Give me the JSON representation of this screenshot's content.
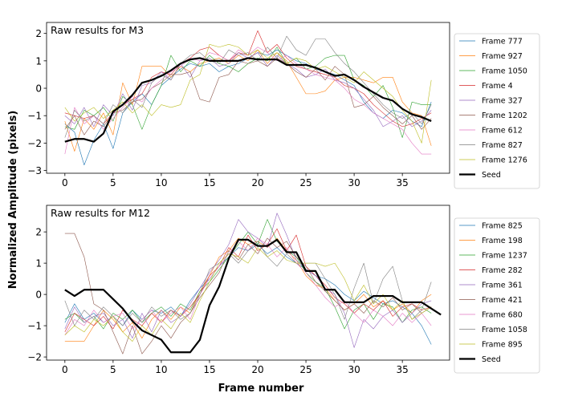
{
  "figure": {
    "ylabel": "Normalized Amplitude (pixels)",
    "xlabel": "Frame number"
  },
  "chart_data": [
    {
      "type": "line",
      "title": "Raw results for M3",
      "xlim": [
        -1.9,
        39.9
      ],
      "ylim": [
        -3.1,
        2.4
      ],
      "xticks": [
        0,
        5,
        10,
        15,
        20,
        25,
        30,
        35
      ],
      "yticks": [
        -3,
        -2,
        -1,
        0,
        1,
        2
      ],
      "legend_position": "right",
      "series": [
        {
          "name": "Frame 777",
          "color": "#1f77b4",
          "bold": false,
          "values": [
            -1.3,
            -1.6,
            -2.8,
            -1.9,
            -1.3,
            -2.2,
            -0.9,
            -0.5,
            -0.2,
            -0.6,
            0.1,
            0.4,
            0.7,
            0.9,
            0.8,
            0.9,
            0.6,
            0.8,
            0.9,
            1.1,
            1.3,
            1.2,
            1.4,
            1.2,
            1.0,
            0.9,
            0.7,
            0.6,
            0.5,
            0.3,
            0.1,
            -0.5,
            -0.9,
            -1.1,
            -0.8,
            -0.9,
            -1.2,
            -1.4,
            -0.5
          ]
        },
        {
          "name": "Frame 927",
          "color": "#ff7f0e",
          "bold": false,
          "values": [
            -1.2,
            -2.3,
            -1.1,
            -1.5,
            -0.9,
            -1.7,
            0.2,
            -0.6,
            0.8,
            0.8,
            0.8,
            0.4,
            0.8,
            0.6,
            0.9,
            1.0,
            1.1,
            0.9,
            1.2,
            1.0,
            1.4,
            0.9,
            1.3,
            1.0,
            0.4,
            -0.2,
            -0.2,
            -0.1,
            0.3,
            0.4,
            0.4,
            0.3,
            0.2,
            0.4,
            0.4,
            -0.5,
            -0.9,
            -1.0,
            -2.1
          ]
        },
        {
          "name": "Frame 1050",
          "color": "#2ca02c",
          "bold": false,
          "values": [
            -1.4,
            -1.5,
            -0.8,
            -1.0,
            -0.7,
            -1.2,
            -0.3,
            -0.6,
            -1.5,
            -0.6,
            0.1,
            1.2,
            0.6,
            1.0,
            0.8,
            1.2,
            0.9,
            0.8,
            0.6,
            0.9,
            1.1,
            1.0,
            1.5,
            0.9,
            1.1,
            0.7,
            0.8,
            1.1,
            1.2,
            1.2,
            0.3,
            0.1,
            -0.3,
            0.1,
            -0.7,
            -1.8,
            -0.5,
            -0.6,
            -0.6
          ]
        },
        {
          "name": "Frame 4",
          "color": "#d62728",
          "bold": false,
          "values": [
            -0.9,
            -1.0,
            -1.1,
            -1.0,
            -1.3,
            -0.9,
            -0.6,
            -0.4,
            -0.2,
            0.4,
            0.6,
            0.5,
            0.9,
            1.1,
            1.4,
            1.5,
            1.2,
            1.0,
            1.3,
            1.2,
            2.1,
            1.3,
            1.6,
            1.1,
            0.8,
            0.7,
            0.6,
            0.5,
            0.4,
            0.1,
            0.0,
            -0.2,
            -0.6,
            -0.9,
            -1.2,
            -1.4,
            -1.3,
            -1.1,
            -0.9
          ]
        },
        {
          "name": "Frame 327",
          "color": "#9467bd",
          "bold": false,
          "values": [
            -1.0,
            -1.3,
            -0.7,
            -1.4,
            -0.6,
            -1.0,
            -0.2,
            -0.8,
            0.1,
            0.2,
            0.6,
            0.3,
            0.9,
            0.4,
            1.0,
            1.1,
            0.8,
            0.9,
            1.3,
            1.1,
            1.3,
            0.8,
            1.2,
            0.9,
            0.7,
            0.4,
            0.5,
            0.7,
            0.3,
            0.2,
            0.0,
            -0.4,
            -0.8,
            -1.4,
            -1.2,
            -1.0,
            -1.4,
            -1.2,
            -0.8
          ]
        },
        {
          "name": "Frame 1202",
          "color": "#8c564b",
          "bold": false,
          "values": [
            -1.5,
            -1.0,
            -1.7,
            -1.2,
            -1.4,
            -0.9,
            -0.8,
            -0.5,
            -0.4,
            0.0,
            0.2,
            0.5,
            0.5,
            0.6,
            -0.4,
            -0.5,
            0.4,
            0.5,
            1.0,
            0.9,
            1.0,
            0.8,
            1.1,
            0.9,
            0.6,
            0.4,
            0.7,
            0.3,
            0.8,
            0.5,
            -0.7,
            -0.6,
            -0.3,
            -0.7,
            -1.0,
            -1.3,
            -1.0,
            -1.5,
            -1.1
          ]
        },
        {
          "name": "Frame 612",
          "color": "#e377c2",
          "bold": false,
          "values": [
            -2.4,
            -0.7,
            -1.3,
            -1.0,
            -1.5,
            -1.1,
            -0.7,
            -0.3,
            -0.5,
            0.0,
            0.3,
            0.6,
            0.8,
            1.1,
            1.0,
            1.3,
            1.2,
            1.0,
            1.4,
            1.2,
            1.5,
            1.3,
            1.0,
            1.2,
            0.9,
            0.7,
            0.5,
            0.4,
            0.3,
            0.0,
            -0.4,
            -0.6,
            -0.9,
            -1.1,
            -1.3,
            -1.5,
            -2.0,
            -2.4,
            -2.4
          ]
        },
        {
          "name": "Frame 827",
          "color": "#7f7f7f",
          "bold": false,
          "values": [
            -1.8,
            -0.8,
            -1.2,
            -1.0,
            -1.3,
            -0.6,
            -0.9,
            -0.4,
            -0.7,
            0.2,
            0.5,
            0.3,
            0.9,
            1.2,
            1.3,
            1.0,
            0.9,
            1.4,
            1.2,
            1.3,
            1.0,
            1.5,
            1.1,
            1.9,
            1.4,
            1.2,
            1.8,
            1.8,
            1.3,
            0.9,
            0.6,
            0.2,
            -0.2,
            -0.6,
            -0.9,
            -1.1,
            -0.9,
            -1.3,
            -0.6
          ]
        },
        {
          "name": "Frame 1276",
          "color": "#bcbd22",
          "bold": false,
          "values": [
            -0.7,
            -1.2,
            -0.9,
            -0.7,
            -1.1,
            -0.8,
            -0.5,
            -0.9,
            -0.6,
            -1.0,
            -0.6,
            -0.7,
            -0.6,
            0.3,
            0.5,
            1.6,
            1.5,
            1.6,
            1.5,
            1.2,
            1.4,
            1.1,
            1.3,
            0.9,
            1.1,
            1.0,
            0.7,
            0.8,
            0.6,
            0.4,
            0.2,
            0.6,
            0.3,
            0.0,
            -0.3,
            -0.8,
            -1.2,
            -2.0,
            0.3
          ]
        },
        {
          "name": "Seed",
          "color": "#000000",
          "bold": true,
          "values": [
            -1.95,
            -1.85,
            -1.85,
            -1.95,
            -1.65,
            -0.85,
            -0.6,
            -0.25,
            0.2,
            0.3,
            0.45,
            0.65,
            0.9,
            1.05,
            1.1,
            1.0,
            1.0,
            1.0,
            1.0,
            1.1,
            1.05,
            1.05,
            1.05,
            0.85,
            0.85,
            0.85,
            0.75,
            0.6,
            0.45,
            0.5,
            0.3,
            0.05,
            -0.15,
            -0.35,
            -0.45,
            -0.75,
            -0.95,
            -1.05,
            -1.2
          ]
        }
      ]
    },
    {
      "type": "line",
      "title": "Raw results for M12",
      "xlim": [
        -1.9,
        39.9
      ],
      "ylim": [
        -2.1,
        2.85
      ],
      "xticks": [
        0,
        5,
        10,
        15,
        20,
        25,
        30,
        35
      ],
      "yticks": [
        -2,
        -1,
        0,
        1,
        2
      ],
      "legend_position": "right",
      "series": [
        {
          "name": "Frame 825",
          "color": "#1f77b4",
          "bold": false,
          "values": [
            -0.9,
            -0.3,
            -0.8,
            -0.6,
            -0.9,
            -0.7,
            -1.0,
            -0.5,
            -0.8,
            -0.5,
            -0.6,
            -0.4,
            -0.7,
            -0.2,
            0.2,
            0.5,
            0.9,
            1.2,
            1.5,
            1.4,
            1.6,
            1.3,
            1.5,
            1.2,
            1.0,
            0.8,
            0.6,
            0.5,
            0.3,
            0.0,
            -0.2,
            0.1,
            -0.1,
            -0.3,
            -0.2,
            -0.4,
            -0.6,
            -1.0,
            -1.6
          ]
        },
        {
          "name": "Frame 198",
          "color": "#ff7f0e",
          "bold": false,
          "values": [
            -1.5,
            -1.5,
            -1.5,
            -1.0,
            -0.5,
            -0.8,
            -1.2,
            -0.9,
            -1.4,
            -0.8,
            -0.5,
            -0.8,
            -0.4,
            -0.6,
            0.1,
            0.6,
            1.2,
            1.4,
            1.8,
            1.6,
            1.7,
            1.5,
            1.8,
            1.4,
            1.1,
            0.6,
            0.3,
            0.2,
            -0.2,
            -0.5,
            -0.3,
            0.0,
            -0.4,
            -0.2,
            -0.5,
            -0.3,
            -0.6,
            -0.2,
            0.0
          ]
        },
        {
          "name": "Frame 1237",
          "color": "#2ca02c",
          "bold": false,
          "values": [
            -0.8,
            -0.6,
            -0.9,
            -0.7,
            -1.1,
            -0.6,
            -0.8,
            -0.5,
            -0.9,
            -0.6,
            -0.4,
            -0.7,
            -0.3,
            -0.5,
            0.1,
            0.4,
            0.8,
            1.2,
            1.6,
            2.0,
            1.6,
            2.4,
            1.7,
            1.4,
            1.2,
            0.7,
            0.4,
            0.2,
            -0.4,
            -1.1,
            -0.5,
            -0.3,
            -0.8,
            -0.3,
            -0.4,
            -0.9,
            -0.5,
            -0.4,
            -0.6
          ]
        },
        {
          "name": "Frame 282",
          "color": "#d62728",
          "bold": false,
          "values": [
            -1.2,
            -0.6,
            -0.8,
            -1.0,
            -0.7,
            -1.1,
            -0.5,
            -0.8,
            -1.0,
            -0.6,
            -0.9,
            -0.5,
            -0.7,
            -0.4,
            0.0,
            0.6,
            0.9,
            1.5,
            1.2,
            1.9,
            1.4,
            1.6,
            2.1,
            1.4,
            1.9,
            0.9,
            0.6,
            0.3,
            -0.1,
            -0.3,
            -0.6,
            -0.3,
            -0.5,
            -0.2,
            -0.7,
            -0.4,
            -0.3,
            -0.5,
            -0.4
          ]
        },
        {
          "name": "Frame 361",
          "color": "#9467bd",
          "bold": false,
          "values": [
            -1.1,
            -0.4,
            -0.9,
            -0.7,
            -0.6,
            -1.0,
            -0.8,
            -1.4,
            -0.6,
            -1.2,
            -0.5,
            -0.9,
            -0.7,
            -0.3,
            0.2,
            0.7,
            1.1,
            1.6,
            2.4,
            2.0,
            1.8,
            1.5,
            2.6,
            1.9,
            1.1,
            0.8,
            0.6,
            0.2,
            0.0,
            -0.6,
            -1.7,
            -0.8,
            -1.1,
            -0.7,
            -0.5,
            -0.9,
            -0.6,
            -0.3,
            -0.2
          ]
        },
        {
          "name": "Frame 421",
          "color": "#8c564b",
          "bold": false,
          "values": [
            1.95,
            1.95,
            1.2,
            -0.3,
            -0.5,
            -1.2,
            -1.9,
            -1.0,
            -1.9,
            -1.5,
            -1.0,
            -1.4,
            -0.9,
            -0.6,
            -0.1,
            0.3,
            0.7,
            1.4,
            1.1,
            1.6,
            1.3,
            1.8,
            1.5,
            1.7,
            1.2,
            0.9,
            0.4,
            0.1,
            -0.2,
            -0.5,
            -0.3,
            -0.6,
            -0.2,
            -0.4,
            -0.1,
            -0.5,
            -0.3,
            -0.6,
            -0.4
          ]
        },
        {
          "name": "Frame 680",
          "color": "#e377c2",
          "bold": false,
          "values": [
            -1.3,
            -0.8,
            -1.0,
            -0.5,
            -0.9,
            -0.7,
            -0.6,
            -1.1,
            -0.8,
            -0.5,
            -0.9,
            -0.6,
            -0.4,
            -0.8,
            0.0,
            0.5,
            0.9,
            1.3,
            1.7,
            1.4,
            1.8,
            1.6,
            1.2,
            1.5,
            1.0,
            0.7,
            0.3,
            -0.1,
            -0.4,
            -0.2,
            -0.6,
            -0.9,
            -0.5,
            -0.7,
            -1.0,
            -0.6,
            -0.9,
            -0.6,
            -1.0
          ]
        },
        {
          "name": "Frame 1058",
          "color": "#7f7f7f",
          "bold": false,
          "values": [
            -0.2,
            -1.0,
            -0.5,
            -0.8,
            -0.4,
            -0.7,
            -1.0,
            -0.6,
            -0.9,
            -0.4,
            -0.7,
            -0.5,
            -0.8,
            -0.6,
            0.0,
            0.8,
            1.0,
            1.3,
            1.0,
            1.4,
            1.7,
            1.2,
            0.9,
            1.3,
            1.0,
            1.0,
            1.0,
            0.5,
            0.0,
            -0.8,
            0.2,
            1.0,
            -0.3,
            0.5,
            0.9,
            -0.2,
            -0.8,
            -0.5,
            0.4
          ]
        },
        {
          "name": "Frame 895",
          "color": "#bcbd22",
          "bold": false,
          "values": [
            -1.3,
            -1.0,
            -1.2,
            -0.8,
            -1.0,
            -0.7,
            -1.2,
            -1.5,
            -1.0,
            -1.3,
            -0.8,
            -1.1,
            -0.6,
            -0.9,
            -0.2,
            0.4,
            1.0,
            1.3,
            1.2,
            1.0,
            1.5,
            1.2,
            1.4,
            1.1,
            1.0,
            1.0,
            1.0,
            0.9,
            1.0,
            0.5,
            -0.2,
            0.3,
            -0.3,
            0.0,
            -0.5,
            -0.2,
            -0.8,
            -0.6,
            -0.4
          ]
        },
        {
          "name": "Seed",
          "color": "#000000",
          "bold": true,
          "values": [
            0.15,
            -0.05,
            0.15,
            0.15,
            0.15,
            -0.15,
            -0.45,
            -0.85,
            -1.15,
            -1.3,
            -1.45,
            -1.85,
            -1.85,
            -1.85,
            -1.45,
            -0.35,
            0.25,
            1.15,
            1.75,
            1.75,
            1.55,
            1.55,
            1.75,
            1.35,
            1.35,
            0.75,
            0.75,
            0.15,
            0.15,
            -0.25,
            -0.25,
            -0.25,
            -0.05,
            -0.05,
            -0.05,
            -0.25,
            -0.25,
            -0.25,
            -0.45,
            -0.65
          ]
        }
      ]
    }
  ]
}
